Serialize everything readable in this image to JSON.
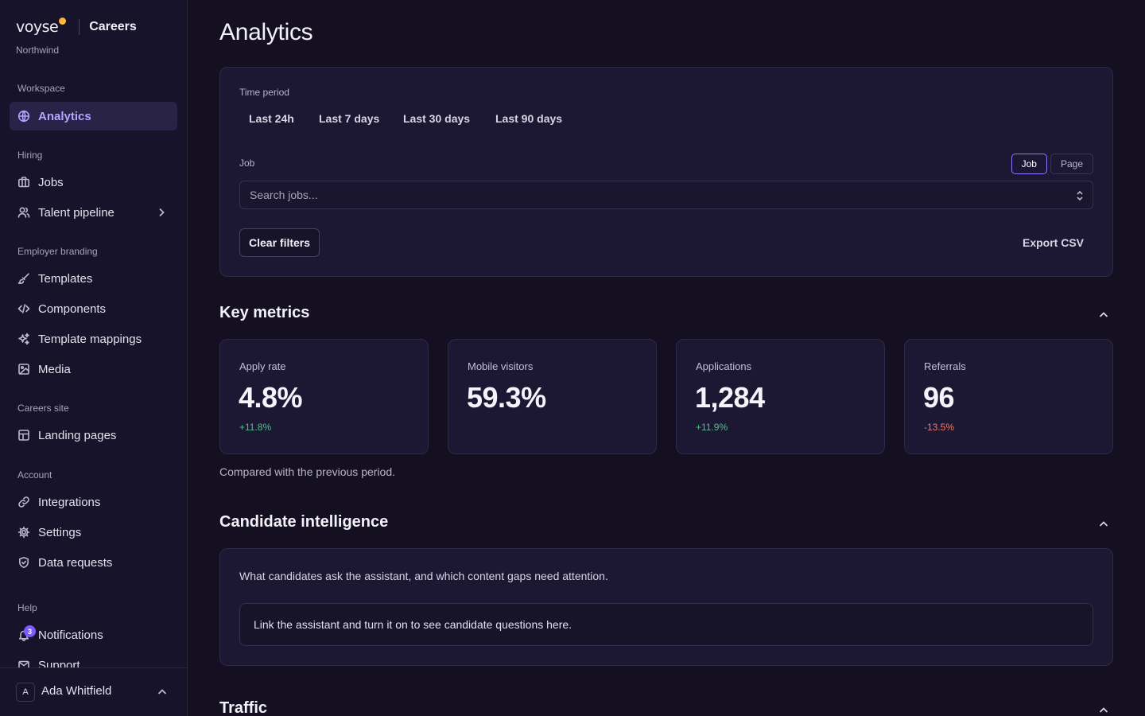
{
  "brand": {
    "logo": "voyse",
    "product": "Careers",
    "org": "Northwind"
  },
  "sidebar": {
    "sections": [
      {
        "label": "Workspace"
      },
      {
        "label": "Hiring"
      },
      {
        "label": "Employer branding"
      },
      {
        "label": "Careers site"
      },
      {
        "label": "Account"
      },
      {
        "label": "Help"
      }
    ],
    "items": [
      {
        "label": "Analytics",
        "icon": "globe-icon",
        "active": true
      },
      {
        "label": "Jobs",
        "icon": "briefcase-icon"
      },
      {
        "label": "Talent pipeline",
        "icon": "users-icon"
      },
      {
        "label": "Templates",
        "icon": "brush-icon"
      },
      {
        "label": "Components",
        "icon": "code-icon"
      },
      {
        "label": "Template mappings",
        "icon": "sparkles-icon"
      },
      {
        "label": "Media",
        "icon": "image-icon"
      },
      {
        "label": "Landing pages",
        "icon": "layout-icon"
      },
      {
        "label": "Integrations",
        "icon": "link-icon"
      },
      {
        "label": "Settings",
        "icon": "gear-icon"
      },
      {
        "label": "Data requests",
        "icon": "shield-icon"
      },
      {
        "label": "Notifications",
        "icon": "bell-icon",
        "badge": "3"
      },
      {
        "label": "Support",
        "icon": "mail-icon"
      }
    ],
    "user": {
      "initial": "A",
      "name": "Ada Whitfield"
    }
  },
  "main": {
    "title": "Analytics",
    "filters": {
      "time_label": "Time period",
      "periods": [
        "Last 24h",
        "Last 7 days",
        "Last 30 days",
        "Last 90 days"
      ],
      "job_label": "Job",
      "scope_toggle": [
        "Job",
        "Page"
      ],
      "scope_selected": "Job",
      "search_placeholder": "Search jobs...",
      "clear_label": "Clear filters",
      "export_label": "Export CSV"
    },
    "key_metrics": {
      "title": "Key metrics",
      "cards": [
        {
          "label": "Apply rate",
          "value": "4.8%",
          "delta": "+11.8%",
          "trend": "up"
        },
        {
          "label": "Mobile visitors",
          "value": "59.3%",
          "delta": "",
          "trend": ""
        },
        {
          "label": "Applications",
          "value": "1,284",
          "delta": "+11.9%",
          "trend": "up"
        },
        {
          "label": "Referrals",
          "value": "96",
          "delta": "-13.5%",
          "trend": "down"
        }
      ],
      "note": "Compared with the previous period."
    },
    "candidate_intelligence": {
      "title": "Candidate intelligence",
      "description": "What candidates ask the assistant, and which content gaps need attention.",
      "empty_state": "Link the assistant and turn it on to see candidate questions here."
    },
    "traffic": {
      "title": "Traffic"
    }
  },
  "colors": {
    "background": "#141021",
    "sidebar": "#17132a",
    "accent": "#8e7cff",
    "positive": "#4cc38a",
    "negative": "#f0796b"
  }
}
